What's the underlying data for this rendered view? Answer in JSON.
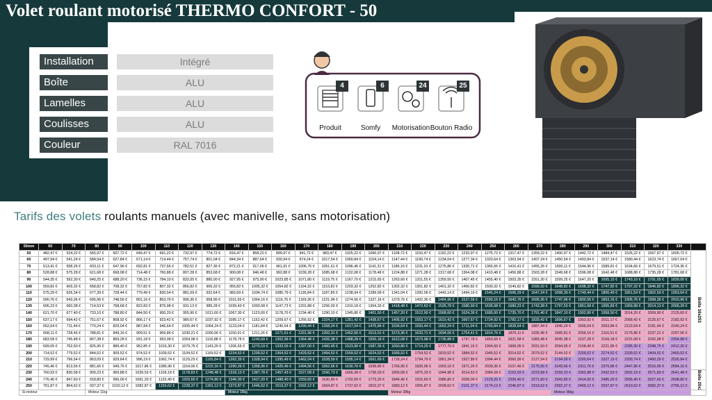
{
  "header": {
    "title": "Volet roulant motorisé THERMO CONFORT - 50"
  },
  "specs": [
    {
      "label": "Installation",
      "value": "Intégré"
    },
    {
      "label": "Boîte",
      "value": "ALU"
    },
    {
      "label": "Lamelles",
      "value": "ALU"
    },
    {
      "label": "Coulisses",
      "value": "ALU"
    },
    {
      "label": "Couleur",
      "value": "RAL 7016"
    }
  ],
  "features": [
    {
      "count": 4,
      "label": "Produit"
    },
    {
      "count": 6,
      "label": "Somfy"
    },
    {
      "count": 24,
      "label": "Motorisation"
    },
    {
      "count": 25,
      "label": "Bouton Radio"
    }
  ],
  "section_title": [
    "Tarifs des volets",
    " roulants manuels (avec manivelle, sans motorisation)"
  ],
  "price_table": {
    "corner": "50mm",
    "widths": [
      60,
      70,
      80,
      90,
      100,
      110,
      120,
      130,
      140,
      150,
      160,
      170,
      180,
      190,
      200,
      210,
      220,
      230,
      240,
      250,
      260,
      270,
      280,
      290,
      300,
      310,
      320,
      330
    ],
    "rows": [
      {
        "height": 50,
        "prices": [
          "482,47 €",
          "524,22 €",
          "565,97 €",
          "607,72 €",
          "649,47 €",
          "691,22 €",
          "732,97 €",
          "774,72 €",
          "816,47 €",
          "858,22 €",
          "899,97 €",
          "941,72 €",
          "983,47 €",
          "1025,22 €",
          "1066,97 €",
          "1108,72 €",
          "1150,47 €",
          "1192,22 €",
          "1233,97 €",
          "1275,72 €",
          "1317,47 €",
          "1359,22 €",
          "1400,97 €",
          "1442,72 €",
          "1484,47 €",
          "1526,22 €",
          "1567,97 €",
          "1609,72 €"
        ]
      },
      {
        "height": 60,
        "prices": [
          "497,94 €",
          "541,24 €",
          "584,54 €",
          "627,84 €",
          "671,14 €",
          "714,44 €",
          "757,74 €",
          "801,04 €",
          "844,34 €",
          "887,64 €",
          "930,94 €",
          "974,24 €",
          "1017,54 €",
          "1060,84 €",
          "1104,14 €",
          "1147,44 €",
          "1190,74 €",
          "1234,04 €",
          "1277,34 €",
          "1320,64 €",
          "1363,94 €",
          "1407,24 €",
          "1450,54 €",
          "1493,84 €",
          "1537,14 €",
          "1580,44 €",
          "1623,74 €",
          "1667,04 €"
        ]
      },
      {
        "height": 70,
        "prices": [
          "513,41 €",
          "558,26 €",
          "603,11 €",
          "647,96 €",
          "692,81 €",
          "737,66 €",
          "782,51 €",
          "827,36 €",
          "872,21 €",
          "917,06 €",
          "961,91 €",
          "1006,76 €",
          "1051,61 €",
          "1096,46 €",
          "1141,31 €",
          "1186,16 €",
          "1231,01 €",
          "1275,86 €",
          "1320,71 €",
          "1365,56 €",
          "1410,41 €",
          "1455,26 €",
          "1500,11 €",
          "1544,96 €",
          "1589,81 €",
          "1634,66 €",
          "1679,51 €",
          "1724,36 €"
        ]
      },
      {
        "height": 80,
        "prices": [
          "528,88 €",
          "575,28 €",
          "621,68 €",
          "668,08 €",
          "714,48 €",
          "760,88 €",
          "807,28 €",
          "853,68 €",
          "900,08 €",
          "946,48 €",
          "992,88 €",
          "1039,28 €",
          "1085,68 €",
          "1132,08 €",
          "1178,48 €",
          "1224,88 €",
          "1271,28 €",
          "1317,68 €",
          "1364,08 €",
          "1410,48 €",
          "1456,88 €",
          "1503,28 €",
          "1549,68 €",
          "1596,08 €",
          "1642,48 €",
          "1688,88 €",
          "1735,28 €",
          "1781,68 €"
        ]
      },
      {
        "height": 90,
        "prices": [
          "544,35 €",
          "592,30 €",
          "640,25 €",
          "688,20 €",
          "736,15 €",
          "784,10 €",
          "832,05 €",
          "880,00 €",
          "927,95 €",
          "975,90 €",
          "1023,85 €",
          "1071,80 €",
          "1119,75 €",
          "1167,70 €",
          "1215,65 €",
          "1263,60 €",
          "1311,55 €",
          "1359,50 €",
          "1407,45 €",
          "1455,40 €",
          "1503,35 €",
          "1551,30 €",
          "1599,25 €",
          "1647,20 €",
          "1695,15 €",
          "1743,10 €",
          "1791,05 €",
          "1839,00 €"
        ]
      },
      {
        "height": 100,
        "prices": [
          "559,82 €",
          "609,32 €",
          "658,82 €",
          "708,32 €",
          "757,82 €",
          "807,32 €",
          "856,82 €",
          "906,32 €",
          "955,82 €",
          "1005,32 €",
          "1054,82 €",
          "1104,32 €",
          "1153,82 €",
          "1203,32 €",
          "1252,82 €",
          "1302,32 €",
          "1351,82 €",
          "1401,32 €",
          "1450,82 €",
          "1500,32 €",
          "1549,82 €",
          "1599,32 €",
          "1648,82 €",
          "1698,32 €",
          "1747,82 €",
          "1797,32 €",
          "1846,82 €",
          "1896,32 €"
        ]
      },
      {
        "height": 110,
        "prices": [
          "575,29 €",
          "626,34 €",
          "677,39 €",
          "728,44 €",
          "779,49 €",
          "830,54 €",
          "881,59 €",
          "932,64 €",
          "983,69 €",
          "1034,74 €",
          "1085,79 €",
          "1136,84 €",
          "1187,89 €",
          "1238,94 €",
          "1289,99 €",
          "1341,04 €",
          "1392,09 €",
          "1443,14 €",
          "1494,19 €",
          "1545,24 €",
          "1596,29 €",
          "1647,34 €",
          "1698,39 €",
          "1749,44 €",
          "1800,49 €",
          "1851,54 €",
          "1902,59 €",
          "1953,64 €"
        ]
      },
      {
        "height": 120,
        "prices": [
          "590,76 €",
          "643,36 €",
          "695,96 €",
          "748,56 €",
          "801,16 €",
          "853,76 €",
          "906,36 €",
          "958,96 €",
          "1011,56 €",
          "1064,16 €",
          "1116,76 €",
          "1169,36 €",
          "1221,96 €",
          "1274,56 €",
          "1327,16 €",
          "1379,76 €",
          "1432,36 €",
          "1484,96 €",
          "1537,56 €",
          "1590,16 €",
          "1642,76 €",
          "1695,36 €",
          "1747,96 €",
          "1800,56 €",
          "1853,16 €",
          "1905,76 €",
          "1958,36 €",
          "2010,96 €"
        ]
      },
      {
        "height": 130,
        "prices": [
          "606,23 €",
          "660,38 €",
          "714,53 €",
          "768,68 €",
          "822,83 €",
          "876,98 €",
          "931,13 €",
          "985,28 €",
          "1039,43 €",
          "1093,58 €",
          "1147,73 €",
          "1201,88 €",
          "1256,03 €",
          "1310,18 €",
          "1364,33 €",
          "1418,48 €",
          "1472,63 €",
          "1526,78 €",
          "1580,93 €",
          "1635,08 €",
          "1689,23 €",
          "1743,38 €",
          "1797,53 €",
          "1851,68 €",
          "1905,83 €",
          "1959,98 €",
          "2014,13 €",
          "2068,28 €"
        ]
      },
      {
        "height": 140,
        "prices": [
          "621,70 €",
          "677,40 €",
          "733,10 €",
          "788,80 €",
          "844,50 €",
          "900,20 €",
          "955,90 €",
          "1011,60 €",
          "1067,30 €",
          "1123,00 €",
          "1178,70 €",
          "1234,40 €",
          "1290,10 €",
          "1345,80 €",
          "1401,50 €",
          "1457,20 €",
          "1512,90 €",
          "1568,60 €",
          "1624,30 €",
          "1680,00 €",
          "1735,70 €",
          "1791,40 €",
          "1847,10 €",
          "1902,80 €",
          "1958,50 €",
          "2014,20 €",
          "2069,90 €",
          "2125,60 €"
        ]
      },
      {
        "height": 150,
        "prices": [
          "637,17 €",
          "694,42 €",
          "751,67 €",
          "808,92 €",
          "866,17 €",
          "923,42 €",
          "980,67 €",
          "1037,92 €",
          "1095,17 €",
          "1152,42 €",
          "1209,67 €",
          "1266,92 €",
          "1324,17 €",
          "1381,42 €",
          "1438,67 €",
          "1495,92 €",
          "1553,17 €",
          "1610,42 €",
          "1667,67 €",
          "1724,92 €",
          "1782,17 €",
          "1839,42 €",
          "1896,67 €",
          "1953,92 €",
          "2011,17 €",
          "2068,42 €",
          "2125,67 €",
          "2182,92 €"
        ]
      },
      {
        "height": 160,
        "prices": [
          "652,64 €",
          "711,44 €",
          "770,24 €",
          "829,04 €",
          "887,84 €",
          "946,64 €",
          "1005,44 €",
          "1064,24 €",
          "1123,04 €",
          "1181,84 €",
          "1240,64 €",
          "1299,44 €",
          "1358,24 €",
          "1417,04 €",
          "1475,84 €",
          "1534,64 €",
          "1593,44 €",
          "1652,24 €",
          "1711,04 €",
          "1769,84 €",
          "1828,64 €",
          "1887,44 €",
          "1946,24 €",
          "2005,04 €",
          "2063,84 €",
          "2122,64 €",
          "2181,44 €",
          "2240,24 €"
        ]
      },
      {
        "height": 170,
        "prices": [
          "668,11 €",
          "728,46 €",
          "788,81 €",
          "849,16 €",
          "909,51 €",
          "969,86 €",
          "1030,21 €",
          "1090,56 €",
          "1150,91 €",
          "1211,26 €",
          "1271,61 €",
          "1331,96 €",
          "1392,31 €",
          "1452,66 €",
          "1513,01 €",
          "1573,36 €",
          "1633,71 €",
          "1694,06 €",
          "1754,41 €",
          "1814,76 €",
          "1875,11 €",
          "1935,46 €",
          "1995,81 €",
          "2056,16 €",
          "2116,51 €",
          "2176,86 €",
          "2237,21 €",
          "2297,56 €"
        ]
      },
      {
        "height": 180,
        "prices": [
          "683,58 €",
          "745,48 €",
          "807,38 €",
          "869,28 €",
          "931,18 €",
          "993,08 €",
          "1054,98 €",
          "1116,88 €",
          "1178,78 €",
          "1240,68 €",
          "1302,58 €",
          "1364,48 €",
          "1426,38 €",
          "1488,28 €",
          "1550,18 €",
          "1612,08 €",
          "1673,98 €",
          "1735,88 €",
          "1797,78 €",
          "1859,68 €",
          "1921,58 €",
          "1983,48 €",
          "2045,38 €",
          "2107,28 €",
          "2169,18 €",
          "2231,08 €",
          "2292,98 €",
          "2354,88 €"
        ]
      },
      {
        "height": 190,
        "prices": [
          "699,05 €",
          "762,50 €",
          "825,95 €",
          "889,40 €",
          "952,85 €",
          "1016,30 €",
          "1079,75 €",
          "1143,20 €",
          "1206,65 €",
          "1270,10 €",
          "1333,55 €",
          "1397,00 €",
          "1460,45 €",
          "1523,90 €",
          "1587,35 €",
          "1650,80 €",
          "1714,25 €",
          "1777,70 €",
          "1841,15 €",
          "1904,60 €",
          "1968,05 €",
          "2031,50 €",
          "2094,95 €",
          "2158,40 €",
          "2221,85 €",
          "2285,30 €",
          "2348,75 €",
          "2412,20 €"
        ]
      },
      {
        "height": 200,
        "prices": [
          "714,52 €",
          "779,52 €",
          "844,52 €",
          "909,52 €",
          "974,52 €",
          "1039,52 €",
          "1104,52 €",
          "1169,52 €",
          "1234,52 €",
          "1299,52 €",
          "1364,52 €",
          "1429,52 €",
          "1494,52 €",
          "1559,52 €",
          "1624,52 €",
          "1689,52 €",
          "1754,52 €",
          "1819,52 €",
          "1884,52 €",
          "1949,52 €",
          "2014,52 €",
          "2079,52 €",
          "2144,52 €",
          "2209,52 €",
          "2274,52 €",
          "2339,52 €",
          "2404,52 €",
          "2469,52 €"
        ]
      },
      {
        "height": 210,
        "prices": [
          "729,99 €",
          "796,54 €",
          "863,09 €",
          "929,64 €",
          "996,19 €",
          "1062,74 €",
          "1129,29 €",
          "1195,84 €",
          "1262,39 €",
          "1328,94 €",
          "1395,49 €",
          "1462,04 €",
          "1528,59 €",
          "1595,14 €",
          "1661,69 €",
          "1728,24 €",
          "1794,79 €",
          "1861,34 €",
          "1927,89 €",
          "1994,44 €",
          "2060,99 €",
          "2127,54 €",
          "2194,09 €",
          "2260,64 €",
          "2327,19 €",
          "2393,74 €",
          "2460,29 €",
          "2526,84 €"
        ]
      },
      {
        "height": 220,
        "prices": [
          "745,46 €",
          "813,56 €",
          "881,66 €",
          "949,76 €",
          "1017,86 €",
          "1085,96 €",
          "1154,06 €",
          "1222,16 €",
          "1290,26 €",
          "1358,36 €",
          "1426,46 €",
          "1494,56 €",
          "1562,66 €",
          "1630,76 €",
          "1698,86 €",
          "1766,96 €",
          "1835,06 €",
          "1903,16 €",
          "1971,26 €",
          "2039,36 €",
          "2107,46 €",
          "2175,56 €",
          "2243,66 €",
          "2311,76 €",
          "2379,86 €",
          "2447,96 €",
          "2516,06 €",
          "2584,16 €"
        ]
      },
      {
        "height": 230,
        "prices": [
          "760,93 €",
          "830,58 €",
          "900,23 €",
          "969,88 €",
          "1039,53 €",
          "1109,18 €",
          "1178,83 €",
          "1248,48 €",
          "1318,13 €",
          "1387,78 €",
          "1457,43 €",
          "1527,08 €",
          "1596,73 €",
          "1666,38 €",
          "1736,03 €",
          "1805,68 €",
          "1875,33 €",
          "1944,98 €",
          "2014,63 €",
          "2084,28 €",
          "2153,93 €",
          "2223,58 €",
          "2293,23 €",
          "2362,88 €",
          "2432,53 €",
          "2502,18 €",
          "2571,83 €",
          "2641,48 €"
        ]
      },
      {
        "height": 240,
        "prices": [
          "776,40 €",
          "847,60 €",
          "918,80 €",
          "990,00 €",
          "1061,20 €",
          "1132,40 €",
          "1203,60 €",
          "1274,80 €",
          "1346,00 €",
          "1417,20 €",
          "1488,40 €",
          "1559,60 €",
          "1630,80 €",
          "1702,00 €",
          "1773,20 €",
          "1844,40 €",
          "1915,60 €",
          "1986,80 €",
          "2058,00 €",
          "2129,20 €",
          "2200,40 €",
          "2271,60 €",
          "2342,80 €",
          "2414,00 €",
          "2485,20 €",
          "2556,40 €",
          "2627,60 €",
          "2698,80 €"
        ]
      },
      {
        "height": 250,
        "prices": [
          "791,87 €",
          "864,62 €",
          "937,37 €",
          "1010,12 €",
          "1082,87 €",
          "1155,62 €",
          "1228,37 €",
          "1301,12 €",
          "1373,87 €",
          "1446,62 €",
          "1519,37 €",
          "1592,12 €",
          "1664,87 €",
          "1737,62 €",
          "1810,37 €",
          "1883,12 €",
          "1955,87 €",
          "2028,62 €",
          "2101,37 €",
          "2174,12 €",
          "2246,87 €",
          "2319,62 €",
          "2392,37 €",
          "2465,12 €",
          "2537,87 €",
          "2610,62 €",
          "2683,37 €",
          "2756,12 €"
        ]
      }
    ],
    "box_labels": [
      "Boîte 16x253",
      "Boîte 20x253"
    ],
    "legend": [
      {
        "label": "Si-moteur",
        "color": "#ffffff"
      },
      {
        "label": "Moteur 11kg",
        "color": "#ffffff"
      },
      {
        "label": "Moteur 16kg",
        "color": "#0f3b3d"
      },
      {
        "label": "Moteur 28kg",
        "color": "#f3a9c8"
      },
      {
        "label": "Moteur 36kg",
        "color": "#c89be0"
      }
    ]
  }
}
